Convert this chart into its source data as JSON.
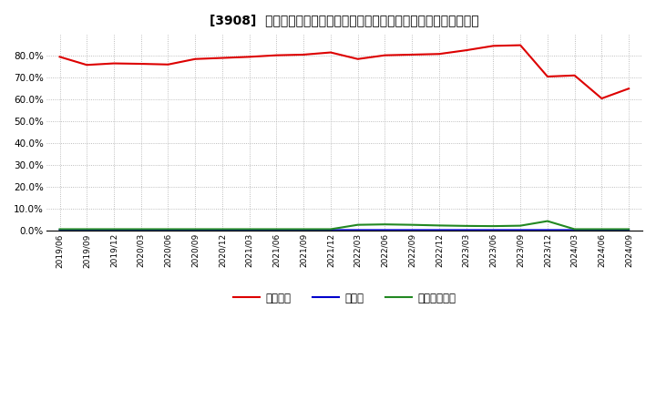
{
  "title": "[3908]  自己資本、のれん、繰延税金資産の総資産に対する比率の推移",
  "x_labels": [
    "2019/06",
    "2019/09",
    "2019/12",
    "2020/03",
    "2020/06",
    "2020/09",
    "2020/12",
    "2021/03",
    "2021/06",
    "2021/09",
    "2021/12",
    "2022/03",
    "2022/06",
    "2022/09",
    "2022/12",
    "2023/03",
    "2023/06",
    "2023/09",
    "2023/12",
    "2024/03",
    "2024/06",
    "2024/09"
  ],
  "jikoshihon": [
    79.5,
    75.8,
    76.5,
    76.3,
    76.0,
    78.5,
    79.0,
    79.5,
    80.2,
    80.5,
    81.5,
    78.5,
    80.2,
    80.5,
    80.8,
    82.5,
    84.5,
    84.8,
    70.5,
    71.0,
    60.5,
    65.0
  ],
  "noren": [
    0.5,
    0.5,
    0.5,
    0.4,
    0.4,
    0.4,
    0.4,
    0.4,
    0.4,
    0.4,
    0.4,
    0.4,
    0.4,
    0.4,
    0.4,
    0.4,
    0.4,
    0.4,
    0.4,
    0.4,
    0.4,
    0.4
  ],
  "kurinobe": [
    0.8,
    0.8,
    0.8,
    0.8,
    0.8,
    0.8,
    0.8,
    0.8,
    0.8,
    0.8,
    0.8,
    2.8,
    3.0,
    2.8,
    2.5,
    2.3,
    2.2,
    2.4,
    4.5,
    0.8,
    0.8,
    0.8
  ],
  "jikoshihon_color": "#dd0000",
  "noren_color": "#0000cc",
  "kurinobe_color": "#228822",
  "bg_color": "#ffffff",
  "plot_bg_color": "#ffffff",
  "grid_color": "#aaaaaa",
  "ylim": [
    0,
    90
  ],
  "yticks": [
    0,
    10,
    20,
    30,
    40,
    50,
    60,
    70,
    80
  ],
  "legend_labels": [
    "自己資本",
    "のれん",
    "繰延税金資産"
  ]
}
